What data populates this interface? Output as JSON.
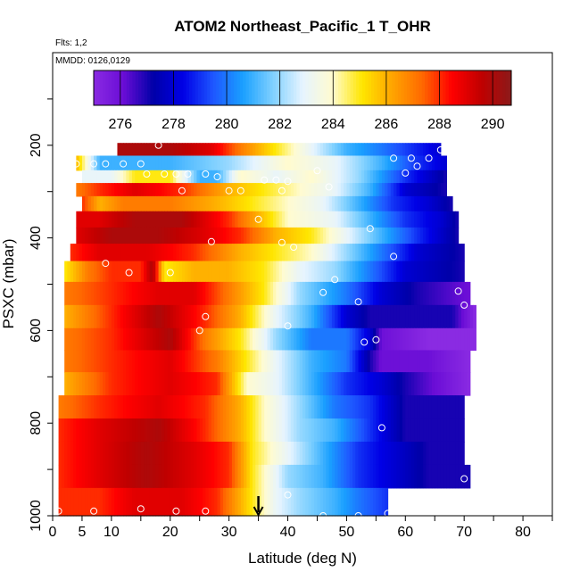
{
  "chart_data": {
    "type": "heatmap",
    "title": "ATOM2 Northeast_Pacific_1 T_OHR",
    "notes": [
      "Flts: 1,2",
      "MMDD: 0126,0129"
    ],
    "xlabel": "Latitude (deg N)",
    "ylabel": "PSXC (mbar)",
    "xlim": [
      0,
      85
    ],
    "ylim": [
      1000,
      0
    ],
    "x_ticks": [
      0,
      5,
      10,
      20,
      30,
      40,
      50,
      60,
      70,
      80
    ],
    "y_ticks": [
      200,
      400,
      600,
      800,
      1000
    ],
    "colorbar": {
      "range": [
        275,
        290.7
      ],
      "ticks": [
        276,
        278,
        280,
        282,
        284,
        286,
        288,
        290
      ],
      "colors": [
        "#8a2be2",
        "#6a0dd6",
        "#0000a8",
        "#0000e6",
        "#1e56ff",
        "#1aa0ff",
        "#7fd0ff",
        "#e6f4ff",
        "#fffbd0",
        "#ffe600",
        "#ffa500",
        "#ff6a00",
        "#ff0000",
        "#c00000",
        "#8b1a1a"
      ]
    },
    "marker": {
      "x": 35,
      "label": "arrow"
    },
    "rows": [
      {
        "p": 205,
        "x0": 11,
        "x1": 66,
        "v": [
          [
            11,
            290
          ],
          [
            20,
            290
          ],
          [
            27,
            289
          ],
          [
            32,
            287
          ],
          [
            38,
            285
          ],
          [
            44,
            283
          ],
          [
            50,
            281
          ],
          [
            56,
            280
          ],
          [
            61,
            279
          ],
          [
            66,
            278
          ]
        ]
      },
      {
        "p": 240,
        "x0": 4,
        "x1": 67,
        "v": [
          [
            4,
            286
          ],
          [
            8,
            281
          ],
          [
            20,
            281
          ],
          [
            30,
            282
          ],
          [
            40,
            284
          ],
          [
            48,
            283
          ],
          [
            56,
            281
          ],
          [
            62,
            279
          ],
          [
            67,
            278
          ]
        ]
      },
      {
        "p": 268,
        "x0": 5,
        "x1": 67,
        "v": [
          [
            5,
            283
          ],
          [
            10,
            283
          ],
          [
            14,
            285
          ],
          [
            20,
            285
          ],
          [
            25,
            281
          ],
          [
            28,
            281
          ],
          [
            32,
            284
          ],
          [
            38,
            283
          ],
          [
            44,
            284
          ],
          [
            52,
            282
          ],
          [
            60,
            279
          ],
          [
            67,
            277
          ]
        ]
      },
      {
        "p": 295,
        "x0": 4,
        "x1": 67,
        "v": [
          [
            4,
            287
          ],
          [
            8,
            288
          ],
          [
            14,
            289
          ],
          [
            22,
            288
          ],
          [
            30,
            286
          ],
          [
            36,
            285
          ],
          [
            42,
            284
          ],
          [
            48,
            283
          ],
          [
            54,
            281
          ],
          [
            60,
            278
          ],
          [
            67,
            277
          ]
        ]
      },
      {
        "p": 325,
        "x0": 5,
        "x1": 68,
        "v": [
          [
            5,
            288
          ],
          [
            8,
            286
          ],
          [
            12,
            287
          ],
          [
            20,
            287
          ],
          [
            28,
            286
          ],
          [
            34,
            285
          ],
          [
            40,
            284
          ],
          [
            46,
            283
          ],
          [
            52,
            281
          ],
          [
            58,
            279
          ],
          [
            64,
            278
          ],
          [
            68,
            277
          ]
        ]
      },
      {
        "p": 360,
        "x0": 4,
        "x1": 69,
        "v": [
          [
            4,
            289
          ],
          [
            8,
            289
          ],
          [
            14,
            290
          ],
          [
            22,
            290
          ],
          [
            30,
            288
          ],
          [
            35,
            286
          ],
          [
            40,
            284
          ],
          [
            48,
            283
          ],
          [
            54,
            281
          ],
          [
            60,
            279
          ],
          [
            66,
            278
          ],
          [
            69,
            277
          ]
        ]
      },
      {
        "p": 395,
        "x0": 4,
        "x1": 69,
        "v": [
          [
            4,
            289
          ],
          [
            10,
            290
          ],
          [
            18,
            290
          ],
          [
            26,
            289
          ],
          [
            32,
            288
          ],
          [
            38,
            286
          ],
          [
            44,
            285
          ],
          [
            50,
            283
          ],
          [
            56,
            281
          ],
          [
            62,
            279
          ],
          [
            69,
            277
          ]
        ]
      },
      {
        "p": 430,
        "x0": 3,
        "x1": 70,
        "v": [
          [
            3,
            288
          ],
          [
            8,
            289
          ],
          [
            16,
            289
          ],
          [
            24,
            288
          ],
          [
            32,
            286
          ],
          [
            38,
            285
          ],
          [
            44,
            284
          ],
          [
            50,
            282
          ],
          [
            56,
            280
          ],
          [
            62,
            278
          ],
          [
            70,
            277
          ]
        ]
      },
      {
        "p": 470,
        "x0": 2,
        "x1": 70,
        "v": [
          [
            2,
            285
          ],
          [
            6,
            287
          ],
          [
            10,
            288
          ],
          [
            15,
            288
          ],
          [
            17,
            290
          ],
          [
            19,
            285
          ],
          [
            24,
            286
          ],
          [
            30,
            286
          ],
          [
            36,
            285
          ],
          [
            42,
            283
          ],
          [
            48,
            282
          ],
          [
            54,
            280
          ],
          [
            60,
            278
          ],
          [
            70,
            277
          ]
        ]
      },
      {
        "p": 520,
        "x0": 2,
        "x1": 71,
        "v": [
          [
            2,
            287
          ],
          [
            10,
            288
          ],
          [
            18,
            289
          ],
          [
            24,
            289
          ],
          [
            30,
            287
          ],
          [
            36,
            285
          ],
          [
            42,
            282
          ],
          [
            50,
            280
          ],
          [
            56,
            278
          ],
          [
            62,
            277
          ],
          [
            71,
            276
          ]
        ]
      },
      {
        "p": 570,
        "x0": 2,
        "x1": 72,
        "v": [
          [
            2,
            286
          ],
          [
            10,
            288
          ],
          [
            18,
            290
          ],
          [
            26,
            288
          ],
          [
            32,
            286
          ],
          [
            38,
            283
          ],
          [
            44,
            281
          ],
          [
            50,
            278
          ],
          [
            54,
            277
          ],
          [
            60,
            277
          ],
          [
            68,
            277
          ],
          [
            72,
            275
          ]
        ]
      },
      {
        "p": 620,
        "x0": 2,
        "x1": 72,
        "v": [
          [
            2,
            287
          ],
          [
            10,
            288
          ],
          [
            20,
            290
          ],
          [
            26,
            287
          ],
          [
            32,
            285
          ],
          [
            38,
            282
          ],
          [
            44,
            280
          ],
          [
            50,
            280
          ],
          [
            54,
            278
          ],
          [
            56,
            276
          ],
          [
            64,
            275
          ],
          [
            72,
            275
          ]
        ]
      },
      {
        "p": 665,
        "x0": 2,
        "x1": 71,
        "v": [
          [
            2,
            287
          ],
          [
            10,
            288
          ],
          [
            20,
            289
          ],
          [
            28,
            287
          ],
          [
            33,
            285
          ],
          [
            38,
            283
          ],
          [
            44,
            281
          ],
          [
            50,
            280
          ],
          [
            54,
            277
          ],
          [
            56,
            276
          ],
          [
            64,
            276
          ],
          [
            71,
            275
          ]
        ]
      },
      {
        "p": 715,
        "x0": 2,
        "x1": 71,
        "v": [
          [
            2,
            286
          ],
          [
            10,
            288
          ],
          [
            20,
            289
          ],
          [
            28,
            288
          ],
          [
            33,
            284
          ],
          [
            38,
            283
          ],
          [
            44,
            281
          ],
          [
            50,
            279
          ],
          [
            56,
            278
          ],
          [
            60,
            277
          ],
          [
            71,
            275
          ]
        ]
      },
      {
        "p": 765,
        "x0": 1,
        "x1": 70,
        "v": [
          [
            1,
            287
          ],
          [
            8,
            288
          ],
          [
            18,
            289
          ],
          [
            26,
            288
          ],
          [
            32,
            286
          ],
          [
            36,
            284
          ],
          [
            42,
            282
          ],
          [
            48,
            280
          ],
          [
            54,
            279
          ],
          [
            60,
            277
          ],
          [
            70,
            277
          ]
        ]
      },
      {
        "p": 815,
        "x0": 1,
        "x1": 70,
        "v": [
          [
            1,
            288
          ],
          [
            8,
            289
          ],
          [
            18,
            290
          ],
          [
            26,
            288
          ],
          [
            32,
            286
          ],
          [
            36,
            284
          ],
          [
            42,
            282
          ],
          [
            48,
            281
          ],
          [
            54,
            279
          ],
          [
            60,
            277
          ],
          [
            70,
            277
          ]
        ]
      },
      {
        "p": 865,
        "x0": 1,
        "x1": 70,
        "v": [
          [
            1,
            288
          ],
          [
            8,
            289
          ],
          [
            16,
            290
          ],
          [
            24,
            289
          ],
          [
            30,
            288
          ],
          [
            34,
            285
          ],
          [
            40,
            283
          ],
          [
            46,
            281
          ],
          [
            52,
            279
          ],
          [
            58,
            278
          ],
          [
            64,
            277
          ],
          [
            70,
            277
          ]
        ]
      },
      {
        "p": 915,
        "x0": 1,
        "x1": 71,
        "v": [
          [
            1,
            288
          ],
          [
            8,
            289
          ],
          [
            16,
            290
          ],
          [
            24,
            289
          ],
          [
            30,
            288
          ],
          [
            34,
            285
          ],
          [
            40,
            282
          ],
          [
            46,
            281
          ],
          [
            52,
            279
          ],
          [
            58,
            278
          ],
          [
            64,
            277
          ],
          [
            71,
            277
          ]
        ]
      },
      {
        "p": 965,
        "x0": 1,
        "x1": 57,
        "v": [
          [
            1,
            288
          ],
          [
            8,
            288
          ],
          [
            14,
            289
          ],
          [
            22,
            289
          ],
          [
            28,
            288
          ],
          [
            34,
            285
          ],
          [
            38,
            283
          ],
          [
            42,
            282
          ],
          [
            48,
            281
          ],
          [
            52,
            280
          ],
          [
            57,
            279
          ]
        ]
      }
    ],
    "points": [
      [
        10,
        212
      ],
      [
        18,
        200
      ],
      [
        30,
        182
      ],
      [
        4,
        240
      ],
      [
        7,
        240
      ],
      [
        9,
        240
      ],
      [
        12,
        240
      ],
      [
        15,
        240
      ],
      [
        58,
        228
      ],
      [
        61,
        228
      ],
      [
        64,
        228
      ],
      [
        66,
        210
      ],
      [
        16,
        262
      ],
      [
        19,
        262
      ],
      [
        21,
        262
      ],
      [
        23,
        262
      ],
      [
        26,
        262
      ],
      [
        28,
        268
      ],
      [
        22,
        298
      ],
      [
        30,
        298
      ],
      [
        32,
        298
      ],
      [
        36,
        275
      ],
      [
        38,
        275
      ],
      [
        40,
        278
      ],
      [
        39,
        298
      ],
      [
        47,
        290
      ],
      [
        45,
        255
      ],
      [
        60,
        260
      ],
      [
        62,
        245
      ],
      [
        35,
        360
      ],
      [
        27,
        408
      ],
      [
        39,
        410
      ],
      [
        41,
        420
      ],
      [
        54,
        380
      ],
      [
        58,
        440
      ],
      [
        9,
        455
      ],
      [
        13,
        475
      ],
      [
        20,
        475
      ],
      [
        48,
        490
      ],
      [
        46,
        518
      ],
      [
        52,
        538
      ],
      [
        69,
        515
      ],
      [
        70,
        545
      ],
      [
        26,
        570
      ],
      [
        40,
        590
      ],
      [
        25,
        600
      ],
      [
        53,
        625
      ],
      [
        55,
        620
      ],
      [
        56,
        810
      ],
      [
        70,
        920
      ],
      [
        40,
        955
      ],
      [
        15,
        985
      ],
      [
        21,
        990
      ],
      [
        26,
        990
      ],
      [
        7,
        990
      ],
      [
        1,
        990
      ],
      [
        46,
        1000
      ],
      [
        52,
        1000
      ],
      [
        57,
        995
      ]
    ]
  }
}
